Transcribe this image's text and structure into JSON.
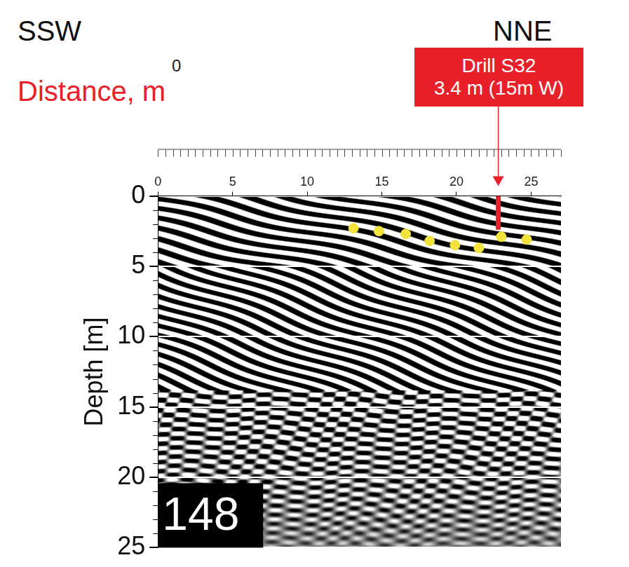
{
  "chart_data": {
    "type": "scatter",
    "direction_labels": [
      "SSW",
      "NNE"
    ],
    "x_label": "Distance, m",
    "x_label_zero": "0",
    "y_label": "Depth [m]",
    "xlim": [
      0,
      27
    ],
    "xticks": [
      0,
      5,
      10,
      15,
      20,
      25
    ],
    "ylim": [
      0,
      25
    ],
    "yticks": [
      0,
      5,
      10,
      15,
      20,
      25
    ],
    "grid": true,
    "x": [
      13.1,
      14.8,
      16.6,
      18.2,
      19.9,
      21.5,
      23.0,
      24.7
    ],
    "values": [
      2.3,
      2.5,
      2.7,
      3.2,
      3.5,
      3.7,
      2.9,
      3.1
    ],
    "color": "#f2e33c",
    "marker": "circle",
    "drill": {
      "label": [
        "Drill S32",
        "3.4 m (15m W)"
      ],
      "x": 22.8,
      "depth": 2.4,
      "color": "#e8202a"
    },
    "panel_label": "148"
  }
}
